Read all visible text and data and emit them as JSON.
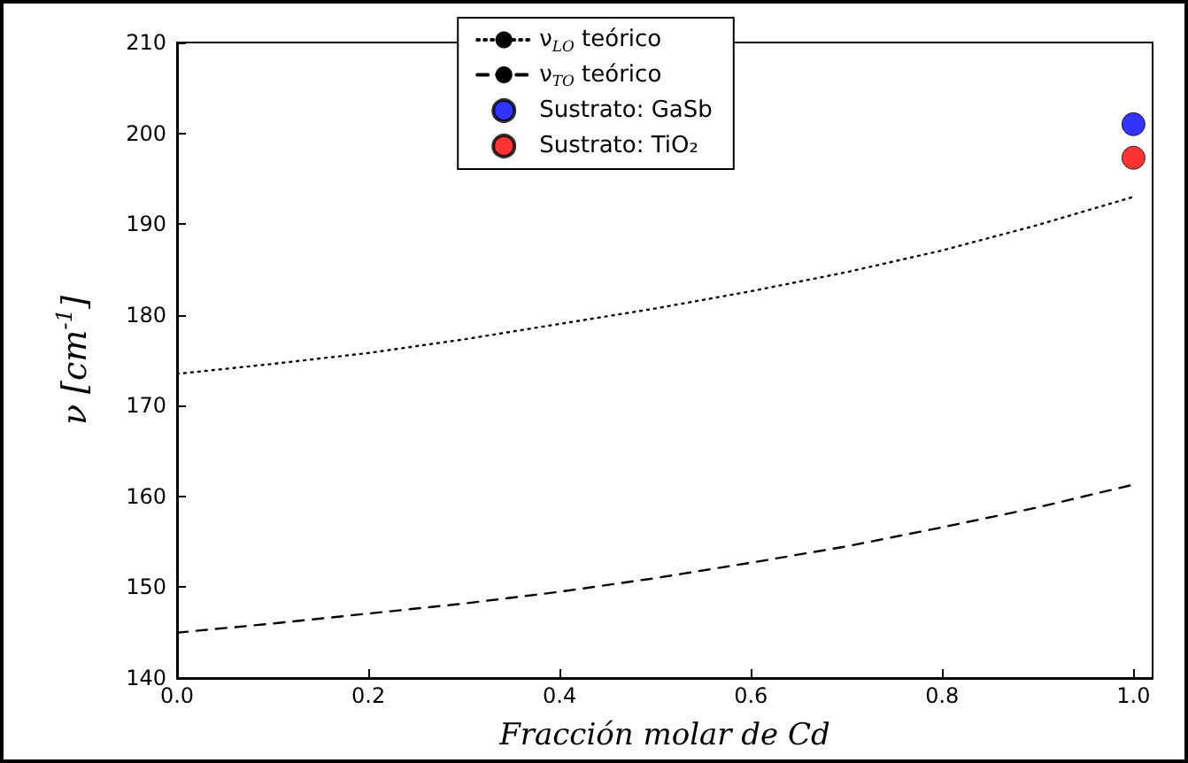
{
  "chart_data": {
    "type": "line",
    "xlabel": "Fracción molar de Cd",
    "ylabel": "ν [cm$^{-1}$]",
    "x": [
      0,
      0.1,
      0.2,
      0.3,
      0.4,
      0.5,
      0.6,
      0.7,
      0.8,
      0.9,
      1.0
    ],
    "series": [
      {
        "name": "ν$_{LO}$ teórico",
        "color": "#000000",
        "line_style": "dotted",
        "marker": "none",
        "values": [
          173.5,
          174.6,
          175.8,
          177.3,
          179,
          180.7,
          182.6,
          184.7,
          187.1,
          189.9,
          193
        ]
      },
      {
        "name": "ν$_{TO}$ teórico",
        "color": "#000000",
        "line_style": "dashed",
        "marker": "none",
        "values": [
          145,
          146,
          147.1,
          148.2,
          149.5,
          151,
          152.7,
          154.5,
          156.6,
          158.8,
          161.3
        ]
      },
      {
        "name": "Sustrato: GaSb",
        "type": "scatter",
        "color": "#0000ff",
        "marker": "circle",
        "x": [
          1.0
        ],
        "values": [
          201
        ]
      },
      {
        "name": "Sustrato: TiO₂",
        "type": "scatter",
        "color": "#ff0000",
        "marker": "circle",
        "x": [
          1.0
        ],
        "values": [
          197.3
        ]
      }
    ],
    "xlim": [
      0,
      1.02
    ],
    "xticks": [
      {
        "value": 0,
        "label": "0.0"
      },
      {
        "value": 0.2,
        "label": "0.2"
      },
      {
        "value": 0.4,
        "label": "0.4"
      },
      {
        "value": 0.6,
        "label": "0.6"
      },
      {
        "value": 0.8,
        "label": "0.8"
      },
      {
        "value": 1.0,
        "label": "1.0"
      }
    ],
    "ylim": [
      140,
      210
    ],
    "yticks": [
      140,
      150,
      160,
      170,
      180,
      190,
      200,
      210
    ],
    "grid": false,
    "legend": "top"
  }
}
